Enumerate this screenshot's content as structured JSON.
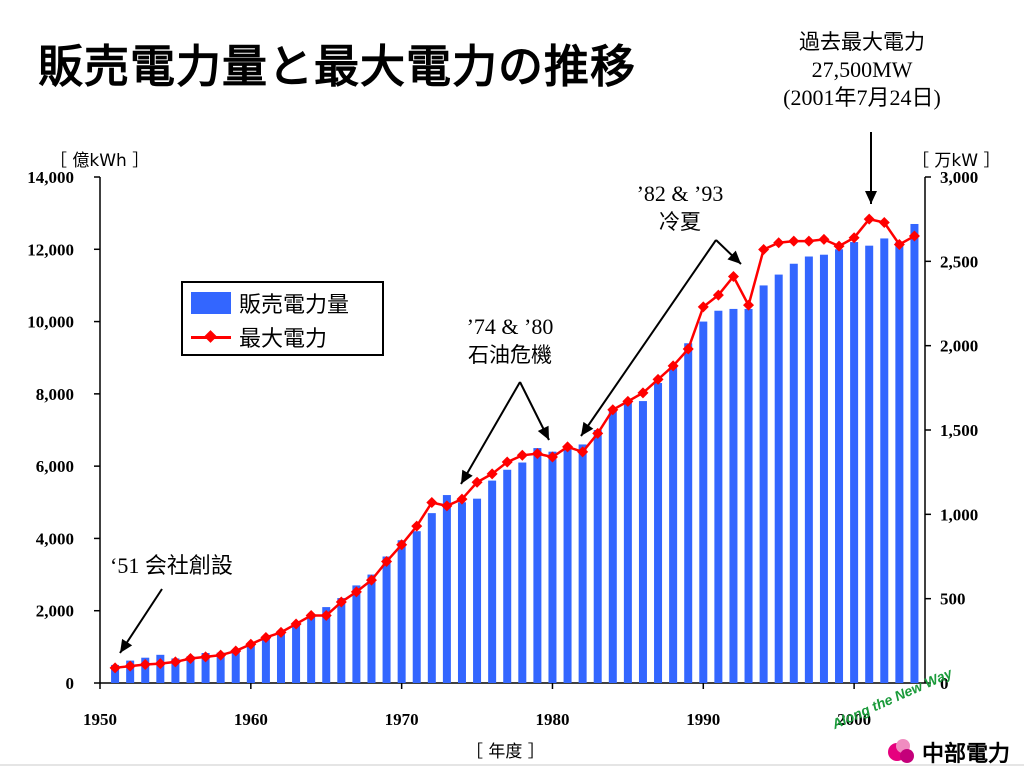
{
  "title": "販売電力量と最大電力の推移",
  "annotations": {
    "peak": {
      "line1": "過去最大電力",
      "line2": "27,500MW",
      "line3": "(2001年7月24日)"
    },
    "cool_summer": {
      "line1": "’82 & ’93",
      "line2": "冷夏"
    },
    "oil_crisis": {
      "line1": "’74 & ’80",
      "line2": "石油危機"
    },
    "founding": {
      "line1": "‘51 会社創設"
    }
  },
  "units": {
    "left": "［ 億kWh ］",
    "right": "［ 万kW ］",
    "x": "［ 年度 ］"
  },
  "legend": {
    "sales": "販売電力量",
    "peak": "最大電力"
  },
  "footer": {
    "slogan": "Along the New Way",
    "company": "中部電力"
  },
  "colors": {
    "bars": "#3366ff",
    "line": "#ff0000",
    "marker": "#ff0000"
  },
  "chart_data": {
    "type": "bar",
    "x": [
      1951,
      1952,
      1953,
      1954,
      1955,
      1956,
      1957,
      1958,
      1959,
      1960,
      1961,
      1962,
      1963,
      1964,
      1965,
      1966,
      1967,
      1968,
      1969,
      1970,
      1971,
      1972,
      1973,
      1974,
      1975,
      1976,
      1977,
      1978,
      1979,
      1980,
      1981,
      1982,
      1983,
      1984,
      1985,
      1986,
      1987,
      1988,
      1989,
      1990,
      1991,
      1992,
      1993,
      1994,
      1995,
      1996,
      1997,
      1998,
      1999,
      2000,
      2001,
      2002,
      2003,
      2004
    ],
    "xlim": [
      1950,
      2004.7
    ],
    "xticks": [
      "1950",
      "1960",
      "1970",
      "1980",
      "1990",
      "2000"
    ],
    "xlabel": "［ 年度 ］",
    "series": [
      {
        "name": "販売電力量",
        "type": "bar",
        "axis": "left",
        "values": [
          500,
          620,
          700,
          780,
          680,
          740,
          830,
          840,
          900,
          1100,
          1300,
          1450,
          1650,
          1900,
          2100,
          2350,
          2700,
          3000,
          3500,
          3950,
          4200,
          4700,
          5200,
          5000,
          5100,
          5600,
          5900,
          6100,
          6500,
          6400,
          6500,
          6600,
          7000,
          7600,
          7800,
          7800,
          8300,
          8800,
          9400,
          10000,
          10300,
          10350,
          10350,
          11000,
          11300,
          11600,
          11800,
          11850,
          12000,
          12200,
          12100,
          12300,
          12200,
          12700
        ]
      },
      {
        "name": "最大電力",
        "type": "line",
        "axis": "right",
        "values": [
          90,
          100,
          110,
          115,
          125,
          145,
          155,
          165,
          190,
          230,
          270,
          300,
          350,
          400,
          400,
          480,
          540,
          610,
          720,
          820,
          930,
          1070,
          1050,
          1090,
          1190,
          1240,
          1310,
          1350,
          1360,
          1340,
          1400,
          1370,
          1480,
          1620,
          1670,
          1720,
          1800,
          1880,
          1980,
          2230,
          2300,
          2410,
          2240,
          2570,
          2610,
          2620,
          2620,
          2630,
          2590,
          2640,
          2750,
          2730,
          2600,
          2650
        ]
      }
    ],
    "ylim_left": [
      0,
      14000
    ],
    "yticks_left": [
      "0",
      "2,000",
      "4,000",
      "6,000",
      "8,000",
      "10,000",
      "12,000",
      "14,000"
    ],
    "ylabel_left": "［ 億kWh ］",
    "ylim_right": [
      0,
      3000
    ],
    "yticks_right": [
      "0",
      "500",
      "1,000",
      "1,500",
      "2,000",
      "2,500",
      "3,000"
    ],
    "ylabel_right": "［ 万kW ］",
    "grid": false,
    "legend_position": "top-left"
  }
}
